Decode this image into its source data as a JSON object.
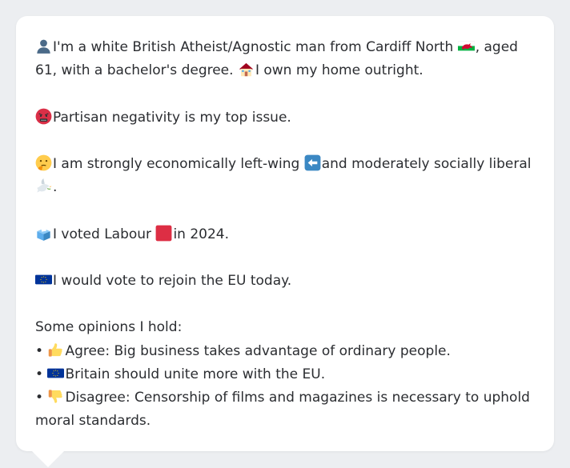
{
  "profile": {
    "intro_part1": "I'm a white British Atheist/Agnostic man from Cardiff North",
    "intro_part2": ", aged 61, with a bachelor's degree.",
    "intro_part3": "I own my home outright.",
    "top_issue": "Partisan negativity is my top issue.",
    "economic_part1": "I am strongly economically left-wing",
    "economic_part2": "and moderately socially liberal",
    "economic_end": ".",
    "vote_part1": "I voted Labour",
    "vote_part2": "in 2024.",
    "eu_vote": "I would vote to rejoin the EU today."
  },
  "opinions": {
    "heading": "Some opinions I hold:",
    "bullet": "•",
    "items": [
      "Agree: Big business takes advantage of ordinary people.",
      "Britain should unite more with the EU.",
      "Disagree: Censorship of films and magazines is necessary to uphold moral standards."
    ]
  },
  "icons": {
    "person": "bust-silhouette-icon",
    "wales": "wales-flag-icon",
    "home": "house-icon",
    "angry": "angry-face-icon",
    "thinking": "thinking-face-icon",
    "left": "left-arrow-icon",
    "dove": "dove-icon",
    "ballot": "ballot-box-icon",
    "labour": "red-square-icon",
    "eu": "eu-flag-icon",
    "thumbs_up": "thumbs-up-icon",
    "thumbs_down": "thumbs-down-icon"
  },
  "colors": {
    "background": "#eceef1",
    "card": "#ffffff",
    "text": "#2b2d31",
    "labour_red": "#dd2e44",
    "eu_blue": "#003399"
  }
}
